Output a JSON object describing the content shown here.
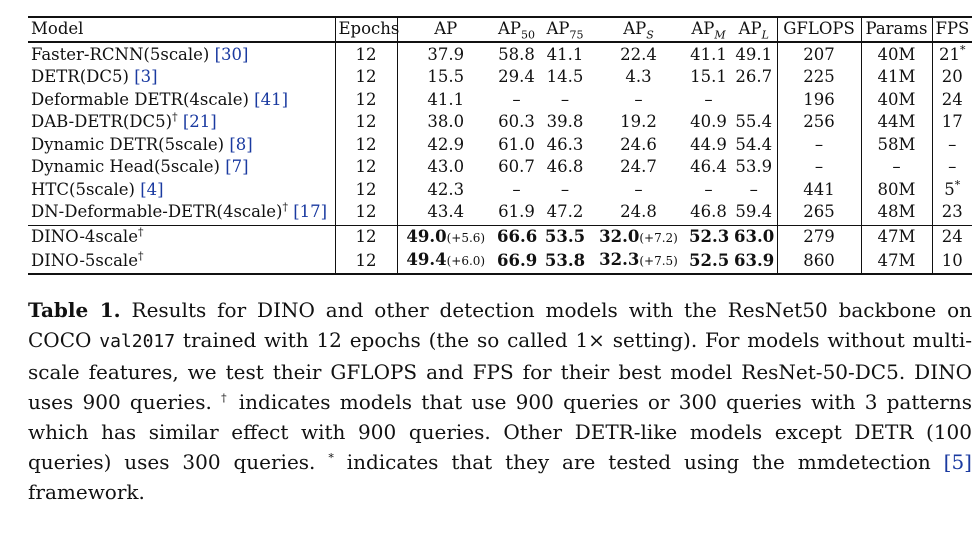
{
  "table": {
    "headers": {
      "model": "Model",
      "epochs": "Epochs",
      "ap": "AP",
      "ap50": "AP",
      "ap50_sub": "50",
      "ap75": "AP",
      "ap75_sub": "75",
      "aps": "AP",
      "aps_sub": "S",
      "apm": "AP",
      "apm_sub": "M",
      "apl": "AP",
      "apl_sub": "L",
      "gflops": "GFLOPS",
      "params": "Params",
      "fps": "FPS"
    },
    "rows": [
      {
        "model": "Faster-RCNN(5scale)",
        "dagger": "",
        "cite": "[30]",
        "epochs": "12",
        "ap": "37.9",
        "ap50": "58.8",
        "ap75": "41.1",
        "aps": "22.4",
        "apm": "41.1",
        "apl": "49.1",
        "gflops": "207",
        "params": "40M",
        "fps": "21",
        "fps_mark": "*"
      },
      {
        "model": "DETR(DC5)",
        "dagger": "",
        "cite": "[3]",
        "epochs": "12",
        "ap": "15.5",
        "ap50": "29.4",
        "ap75": "14.5",
        "aps": "4.3",
        "apm": "15.1",
        "apl": "26.7",
        "gflops": "225",
        "params": "41M",
        "fps": "20",
        "fps_mark": ""
      },
      {
        "model": "Deformable DETR(4scale)",
        "dagger": "",
        "cite": "[41]",
        "epochs": "12",
        "ap": "41.1",
        "ap50": "–",
        "ap75": "–",
        "aps": "–",
        "apm": "–",
        "apl": "",
        "gflops": "196",
        "params": "40M",
        "fps": "24",
        "fps_mark": ""
      },
      {
        "model": "DAB-DETR(DC5)",
        "dagger": "†",
        "cite": "[21]",
        "epochs": "12",
        "ap": "38.0",
        "ap50": "60.3",
        "ap75": "39.8",
        "aps": "19.2",
        "apm": "40.9",
        "apl": "55.4",
        "gflops": "256",
        "params": "44M",
        "fps": "17",
        "fps_mark": ""
      },
      {
        "model": "Dynamic DETR(5scale)",
        "dagger": "",
        "cite": "[8]",
        "epochs": "12",
        "ap": "42.9",
        "ap50": "61.0",
        "ap75": "46.3",
        "aps": "24.6",
        "apm": "44.9",
        "apl": "54.4",
        "gflops": "–",
        "params": "58M",
        "fps": "–",
        "fps_mark": ""
      },
      {
        "model": "Dynamic Head(5scale)",
        "dagger": "",
        "cite": "[7]",
        "epochs": "12",
        "ap": "43.0",
        "ap50": "60.7",
        "ap75": "46.8",
        "aps": "24.7",
        "apm": "46.4",
        "apl": "53.9",
        "gflops": "–",
        "params": "–",
        "fps": "–",
        "fps_mark": ""
      },
      {
        "model": "HTC(5scale)",
        "dagger": "",
        "cite": "[4]",
        "epochs": "12",
        "ap": "42.3",
        "ap50": "–",
        "ap75": "–",
        "aps": "–",
        "apm": "–",
        "apl": "–",
        "gflops": "441",
        "params": "80M",
        "fps": "5",
        "fps_mark": "*"
      },
      {
        "model": "DN-Deformable-DETR(4scale)",
        "dagger": "†",
        "cite": "[17]",
        "epochs": "12",
        "ap": "43.4",
        "ap50": "61.9",
        "ap75": "47.2",
        "aps": "24.8",
        "apm": "46.8",
        "apl": "59.4",
        "gflops": "265",
        "params": "48M",
        "fps": "23",
        "fps_mark": ""
      }
    ],
    "dino_rows": [
      {
        "model": "DINO-4scale",
        "dagger": "†",
        "epochs": "12",
        "ap": "49.0",
        "ap_gain": "(+5.6)",
        "ap50": "66.6",
        "ap75": "53.5",
        "aps": "32.0",
        "aps_gain": "(+7.2)",
        "apm": "52.3",
        "apl": "63.0",
        "gflops": "279",
        "params": "47M",
        "fps": "24"
      },
      {
        "model": "DINO-5scale",
        "dagger": "†",
        "epochs": "12",
        "ap": "49.4",
        "ap_gain": "(+6.0)",
        "ap50": "66.9",
        "ap75": "53.8",
        "aps": "32.3",
        "aps_gain": "(+7.5)",
        "apm": "52.5",
        "apl": "63.9",
        "gflops": "860",
        "params": "47M",
        "fps": "10"
      }
    ]
  },
  "caption": {
    "label": "Table 1.",
    "t1": " Results for DINO and other detection models with the ResNet50 backbone on COCO ",
    "code": "val2017",
    "t2": " trained with 12 epochs (the so called 1× setting). For models without multi-scale features, we test their GFLOPS and FPS for their best model ResNet-50-DC5. DINO uses 900 queries. ",
    "dagger": "†",
    "t3": " indicates models that use 900 queries or 300 queries with 3 patterns which has similar effect with 900 queries. Other DETR-like models except DETR (100 queries) uses 300 queries. ",
    "star": "*",
    "t4": " indicates that they are tested using the mmdetection ",
    "cite": "[5]",
    "t5": " framework."
  }
}
